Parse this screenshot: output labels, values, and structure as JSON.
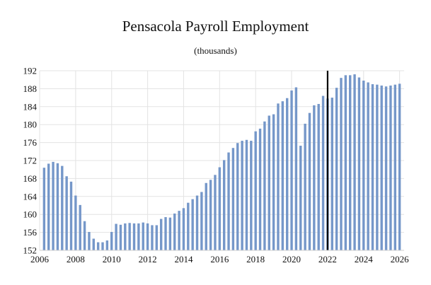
{
  "chart_data": {
    "type": "bar",
    "title": "Pensacola Payroll Employment",
    "subtitle": "(thousands)",
    "xlabel": "",
    "ylabel": "",
    "ylim": [
      152,
      192
    ],
    "yticks": [
      152,
      156,
      160,
      164,
      168,
      172,
      176,
      180,
      184,
      188,
      192
    ],
    "xlim": [
      2006,
      2026.25
    ],
    "xticks": [
      2006,
      2008,
      2010,
      2012,
      2014,
      2016,
      2018,
      2020,
      2022,
      2024,
      2026
    ],
    "grid": true,
    "bar_color": "#7597c9",
    "marker_color": "#000000",
    "forecast_start": 2022,
    "series": [
      {
        "x": [
          2006.25,
          2006.5,
          2006.75,
          2007.0,
          2007.25,
          2007.5,
          2007.75,
          2008.0,
          2008.25,
          2008.5,
          2008.75,
          2009.0,
          2009.25,
          2009.5,
          2009.75,
          2010.0,
          2010.25,
          2010.5,
          2010.75,
          2011.0,
          2011.25,
          2011.5,
          2011.75,
          2012.0,
          2012.25,
          2012.5,
          2012.75,
          2013.0,
          2013.25,
          2013.5,
          2013.75,
          2014.0,
          2014.25,
          2014.5,
          2014.75,
          2015.0,
          2015.25,
          2015.5,
          2015.75,
          2016.0,
          2016.25,
          2016.5,
          2016.75,
          2017.0,
          2017.25,
          2017.5,
          2017.75,
          2018.0,
          2018.25,
          2018.5,
          2018.75,
          2019.0,
          2019.25,
          2019.5,
          2019.75,
          2020.0,
          2020.25,
          2020.5,
          2020.75,
          2021.0,
          2021.25,
          2021.5,
          2021.75,
          2022.0,
          2022.25,
          2022.5,
          2022.75,
          2023.0,
          2023.25,
          2023.5,
          2023.75,
          2024.0,
          2024.25,
          2024.5,
          2024.75,
          2025.0,
          2025.25,
          2025.5,
          2025.75,
          2026.0
        ],
        "values": [
          170.4,
          171.3,
          171.7,
          171.4,
          170.8,
          168.5,
          167.3,
          164.2,
          162.1,
          158.5,
          156.1,
          154.6,
          153.8,
          153.8,
          154.2,
          156.1,
          157.9,
          157.7,
          158.0,
          158.1,
          158.0,
          158.0,
          158.2,
          158.0,
          157.6,
          157.6,
          159.0,
          159.4,
          159.3,
          160.2,
          160.8,
          161.4,
          162.6,
          163.4,
          164.2,
          165.0,
          167.0,
          167.7,
          168.8,
          170.5,
          172.1,
          173.8,
          174.8,
          175.9,
          176.4,
          176.6,
          176.4,
          178.5,
          179.1,
          180.7,
          182.0,
          182.3,
          184.7,
          185.2,
          185.9,
          187.6,
          188.3,
          175.3,
          180.2,
          182.6,
          184.3,
          184.6,
          186.4,
          185.8,
          186.0,
          188.2,
          190.4,
          191.0,
          191.0,
          191.2,
          190.5,
          189.8,
          189.4,
          189.0,
          188.9,
          188.7,
          188.5,
          188.7,
          188.9,
          189.1
        ]
      }
    ]
  }
}
